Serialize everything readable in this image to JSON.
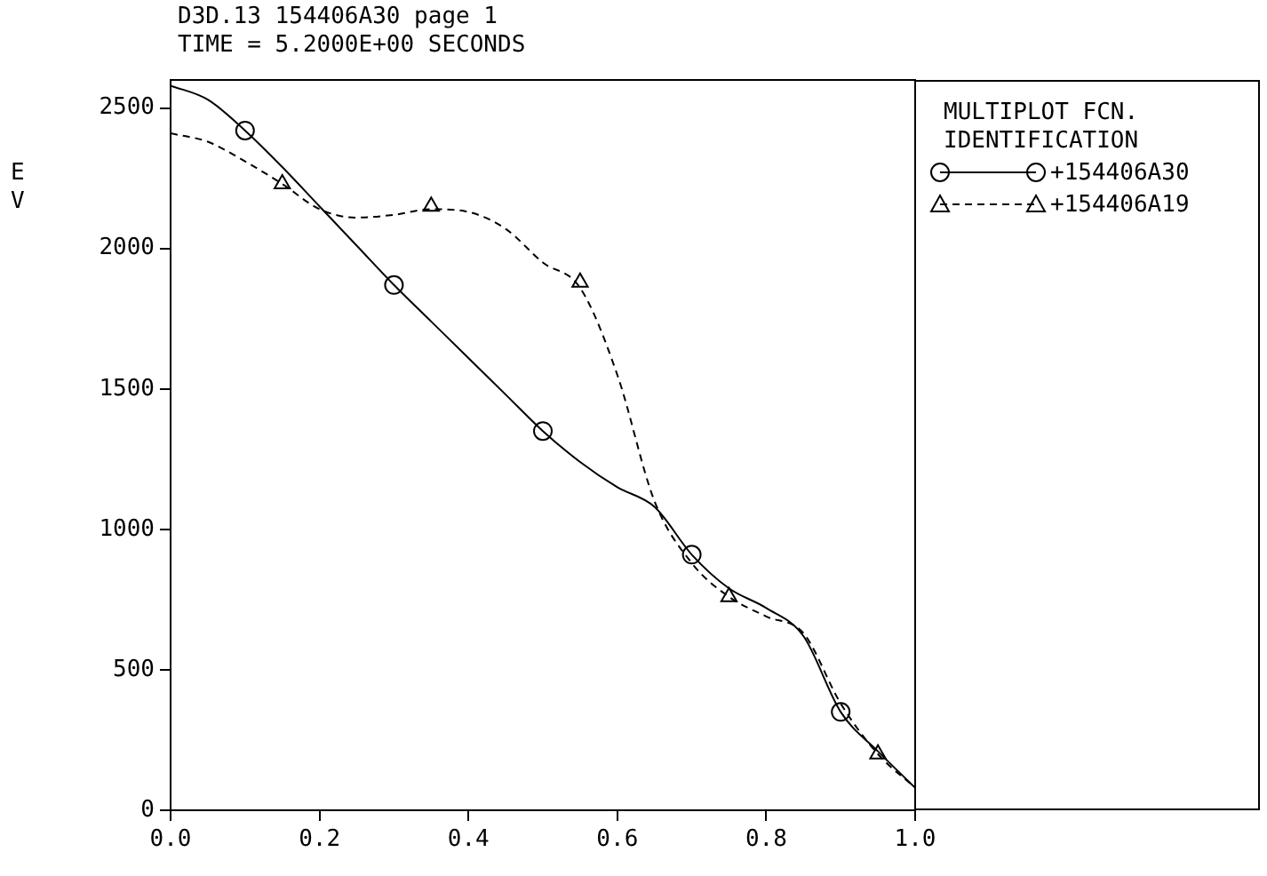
{
  "chart_data": {
    "type": "line",
    "title": "D3D.13 154406A30 page 1",
    "subtitle": "TIME = 5.2000E+00 SECONDS",
    "ylabel": "EV",
    "legend_title": "MULTIPLOT FCN. IDENTIFICATION",
    "legend": "right",
    "grid": false,
    "xlim": [
      0,
      1
    ],
    "xticks": [
      {
        "value": 0,
        "label": "0.0"
      },
      {
        "value": 0.2,
        "label": "0.2"
      },
      {
        "value": 0.4,
        "label": "0.4"
      },
      {
        "value": 0.6,
        "label": "0.6"
      },
      {
        "value": 0.8,
        "label": "0.8"
      },
      {
        "value": 1,
        "label": "1.0"
      }
    ],
    "ylim": [
      0,
      2600
    ],
    "yticks": [
      0,
      500,
      1000,
      1500,
      2000,
      2500
    ],
    "series": [
      {
        "name": "+154406A30",
        "color": "#000000",
        "line_style": "solid",
        "marker": "none",
        "x": [
          0,
          0.05,
          0.1,
          0.15,
          0.2,
          0.25,
          0.3,
          0.35,
          0.4,
          0.45,
          0.5,
          0.55,
          0.6,
          0.65,
          0.7,
          0.75,
          0.8,
          0.85,
          0.9,
          0.95,
          1
        ],
        "values": [
          2580,
          2530,
          2420,
          2290,
          2150,
          2010,
          1870,
          1740,
          1610,
          1480,
          1350,
          1240,
          1150,
          1080,
          910,
          790,
          720,
          620,
          350,
          210,
          80
        ]
      },
      {
        "name": "+154406A19",
        "color": "#000000",
        "line_style": "dashed",
        "marker": "none",
        "x": [
          0,
          0.05,
          0.1,
          0.15,
          0.2,
          0.25,
          0.3,
          0.35,
          0.4,
          0.45,
          0.5,
          0.55,
          0.6,
          0.65,
          0.7,
          0.75,
          0.8,
          0.85,
          0.9,
          0.95,
          1
        ],
        "values": [
          2410,
          2380,
          2310,
          2230,
          2140,
          2110,
          2120,
          2140,
          2130,
          2070,
          1950,
          1860,
          1550,
          1100,
          880,
          760,
          690,
          630,
          380,
          200,
          80
        ]
      },
      {
        "type": "scatter",
        "color": "#000000",
        "marker": "circle",
        "x": [
          0.1,
          0.3,
          0.5,
          0.7,
          0.9
        ],
        "values": [
          2420,
          1870,
          1350,
          910,
          350
        ]
      },
      {
        "type": "scatter",
        "color": "#000000",
        "marker": "triangle",
        "x": [
          0.15,
          0.35,
          0.55,
          0.75,
          0.95
        ],
        "values": [
          2230,
          2150,
          1880,
          760,
          200
        ]
      }
    ]
  }
}
